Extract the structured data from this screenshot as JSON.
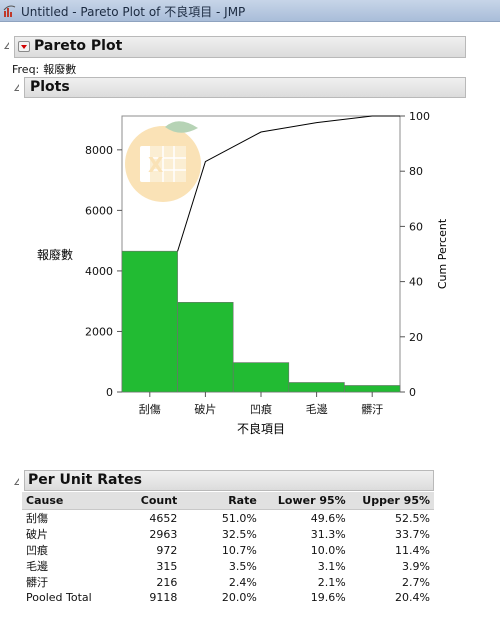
{
  "window": {
    "title": "Untitled - Pareto Plot of 不良項目 - JMP"
  },
  "pareto": {
    "title": "Pareto Plot",
    "freq_label": "Freq:",
    "freq_value": "報廢數"
  },
  "plots": {
    "title": "Plots"
  },
  "chart_data": {
    "type": "bar",
    "categories": [
      "刮傷",
      "破片",
      "凹痕",
      "毛邊",
      "髒汙"
    ],
    "values": [
      4652,
      2963,
      972,
      315,
      216
    ],
    "cum_percent": [
      51.0,
      83.5,
      94.2,
      97.6,
      100.0
    ],
    "xlabel": "不良項目",
    "ylabel": "報廢數",
    "y2label": "Cum Percent",
    "ylim": [
      0,
      9118
    ],
    "y_ticks": [
      0,
      2000,
      4000,
      6000,
      8000
    ],
    "y2lim": [
      0,
      100
    ],
    "y2_ticks": [
      0,
      20,
      40,
      60,
      80,
      100
    ],
    "bar_color": "#22bb33",
    "line_color": "#000000",
    "grid": false
  },
  "rates": {
    "title": "Per Unit Rates",
    "columns": [
      "Cause",
      "Count",
      "Rate",
      "Lower 95%",
      "Upper 95%"
    ],
    "rows": [
      [
        "刮傷",
        "4652",
        "51.0%",
        "49.6%",
        "52.5%"
      ],
      [
        "破片",
        "2963",
        "32.5%",
        "31.3%",
        "33.7%"
      ],
      [
        "凹痕",
        "972",
        "10.7%",
        "10.0%",
        "11.4%"
      ],
      [
        "毛邊",
        "315",
        "3.5%",
        "3.1%",
        "3.9%"
      ],
      [
        "髒汙",
        "216",
        "2.4%",
        "2.1%",
        "2.7%"
      ],
      [
        "Pooled Total",
        "9118",
        "20.0%",
        "19.6%",
        "20.4%"
      ]
    ]
  }
}
